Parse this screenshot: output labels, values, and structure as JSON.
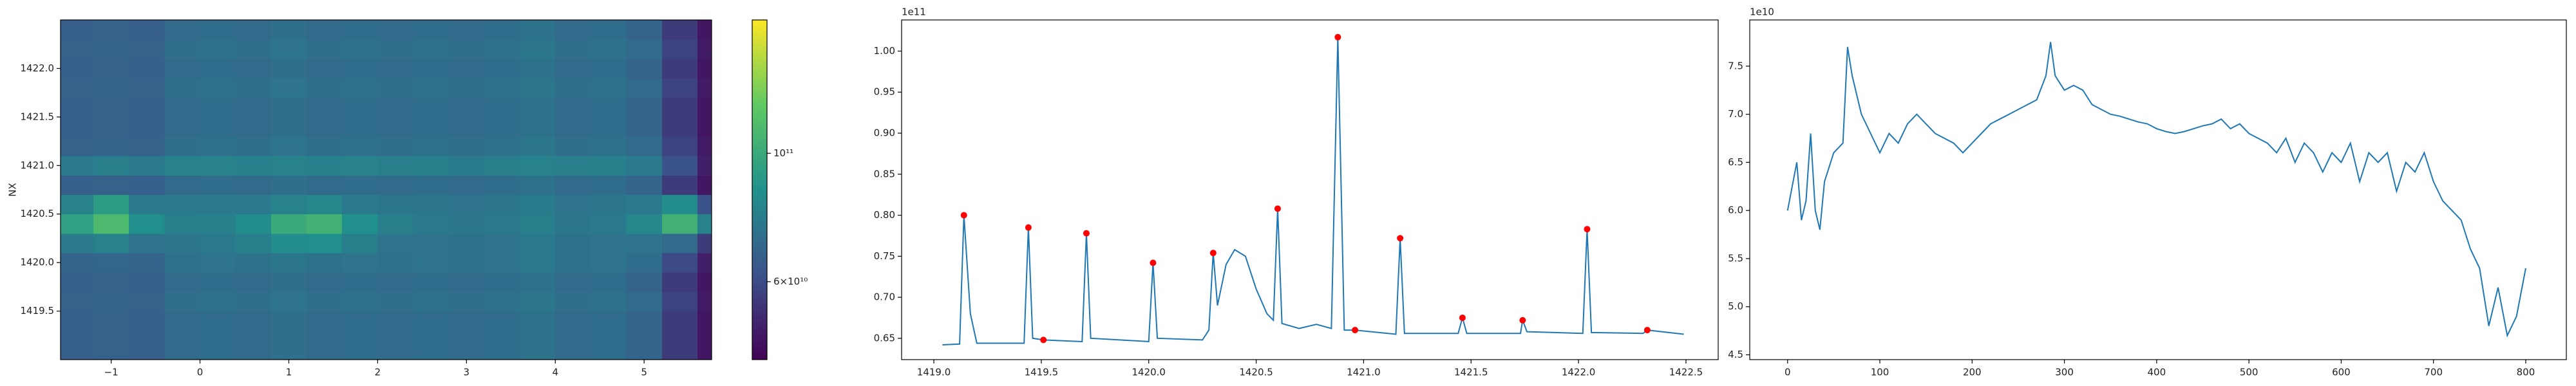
{
  "chart_data": [
    {
      "type": "heatmap",
      "ylabel": "NX",
      "colormap": "viridis",
      "color_scale": "log",
      "xlim": [
        -1.57,
        5.76
      ],
      "ylim": [
        1419.0,
        1422.5
      ],
      "xticks": [
        {
          "value": -1,
          "label": "−1"
        },
        0,
        1,
        2,
        3,
        4,
        5
      ],
      "yticks": [
        1419.5,
        {
          "value": 1420,
          "label": "1420.0"
        },
        1420.5,
        {
          "value": 1421,
          "label": "1421.0"
        },
        1421.5,
        {
          "value": 1422,
          "label": "1422.0"
        }
      ],
      "clim": [
        44000000000.0,
        170000000000.0
      ],
      "cticks": [
        {
          "value": 60000000000.0,
          "label": "6×10¹⁰"
        },
        {
          "value": 100000000000.0,
          "label": "10¹¹"
        }
      ],
      "x": [
        -1.4,
        -1.0,
        -0.6,
        -0.2,
        0.2,
        0.6,
        1.0,
        1.4,
        1.8,
        2.2,
        2.6,
        3.0,
        3.4,
        3.8,
        4.2,
        4.6,
        5.0,
        5.4,
        5.8
      ],
      "y": [
        1419.2,
        1419.4,
        1419.6,
        1419.8,
        1420.0,
        1420.2,
        1420.4,
        1420.6,
        1420.8,
        1421.0,
        1421.2,
        1421.4,
        1421.6,
        1421.8,
        1422.0,
        1422.2,
        1422.4
      ],
      "z": [
        [
          66000000000.0,
          67000000000.0,
          66000000000.0,
          70000000000.0,
          71000000000.0,
          70000000000.0,
          72000000000.0,
          70000000000.0,
          71000000000.0,
          70000000000.0,
          71000000000.0,
          70000000000.0,
          71000000000.0,
          73000000000.0,
          70000000000.0,
          71000000000.0,
          68000000000.0,
          56000000000.0,
          48000000000.0
        ],
        [
          66000000000.0,
          67000000000.0,
          66000000000.0,
          70000000000.0,
          71000000000.0,
          70000000000.0,
          72000000000.0,
          70000000000.0,
          71000000000.0,
          70000000000.0,
          71000000000.0,
          70000000000.0,
          71000000000.0,
          73000000000.0,
          70000000000.0,
          71000000000.0,
          68000000000.0,
          56000000000.0,
          48000000000.0
        ],
        [
          67000000000.0,
          68000000000.0,
          67000000000.0,
          72000000000.0,
          73000000000.0,
          72000000000.0,
          74000000000.0,
          72000000000.0,
          73000000000.0,
          72000000000.0,
          73000000000.0,
          72000000000.0,
          73000000000.0,
          75000000000.0,
          72000000000.0,
          73000000000.0,
          70000000000.0,
          58000000000.0,
          49000000000.0
        ],
        [
          66000000000.0,
          67000000000.0,
          66000000000.0,
          70000000000.0,
          71000000000.0,
          70000000000.0,
          72000000000.0,
          70000000000.0,
          71000000000.0,
          70000000000.0,
          71000000000.0,
          70000000000.0,
          71000000000.0,
          73000000000.0,
          70000000000.0,
          71000000000.0,
          68000000000.0,
          56000000000.0,
          48000000000.0
        ],
        [
          68000000000.0,
          69000000000.0,
          68000000000.0,
          73000000000.0,
          74000000000.0,
          73000000000.0,
          75000000000.0,
          73000000000.0,
          74000000000.0,
          73000000000.0,
          74000000000.0,
          73000000000.0,
          74000000000.0,
          76000000000.0,
          73000000000.0,
          74000000000.0,
          71000000000.0,
          60000000000.0,
          50000000000.0
        ],
        [
          76000000000.0,
          80000000000.0,
          74000000000.0,
          75000000000.0,
          76000000000.0,
          78000000000.0,
          84000000000.0,
          86000000000.0,
          78000000000.0,
          74000000000.0,
          74000000000.0,
          73000000000.0,
          74000000000.0,
          76000000000.0,
          73000000000.0,
          74000000000.0,
          74000000000.0,
          70000000000.0,
          56000000000.0
        ],
        [
          94000000000.0,
          110000000000.0,
          86000000000.0,
          78000000000.0,
          79000000000.0,
          84000000000.0,
          100000000000.0,
          105000000000.0,
          86000000000.0,
          78000000000.0,
          76000000000.0,
          75000000000.0,
          76000000000.0,
          78000000000.0,
          75000000000.0,
          76000000000.0,
          82000000000.0,
          104000000000.0,
          80000000000.0
        ],
        [
          80000000000.0,
          92000000000.0,
          76000000000.0,
          76000000000.0,
          76000000000.0,
          76000000000.0,
          80000000000.0,
          82000000000.0,
          76000000000.0,
          75000000000.0,
          75000000000.0,
          74000000000.0,
          75000000000.0,
          77000000000.0,
          74000000000.0,
          75000000000.0,
          76000000000.0,
          84000000000.0,
          62000000000.0
        ],
        [
          66000000000.0,
          67000000000.0,
          66000000000.0,
          70000000000.0,
          71000000000.0,
          70000000000.0,
          72000000000.0,
          70000000000.0,
          71000000000.0,
          70000000000.0,
          71000000000.0,
          70000000000.0,
          71000000000.0,
          73000000000.0,
          70000000000.0,
          71000000000.0,
          68000000000.0,
          56000000000.0,
          48000000000.0
        ],
        [
          76000000000.0,
          78000000000.0,
          76000000000.0,
          80000000000.0,
          80000000000.0,
          79000000000.0,
          80000000000.0,
          79000000000.0,
          80000000000.0,
          78000000000.0,
          79000000000.0,
          77000000000.0,
          78000000000.0,
          80000000000.0,
          78000000000.0,
          79000000000.0,
          76000000000.0,
          62000000000.0,
          50000000000.0
        ],
        [
          67000000000.0,
          68000000000.0,
          67000000000.0,
          72000000000.0,
          73000000000.0,
          72000000000.0,
          74000000000.0,
          72000000000.0,
          73000000000.0,
          72000000000.0,
          73000000000.0,
          72000000000.0,
          73000000000.0,
          75000000000.0,
          72000000000.0,
          73000000000.0,
          70000000000.0,
          58000000000.0,
          49000000000.0
        ],
        [
          66000000000.0,
          67000000000.0,
          66000000000.0,
          70000000000.0,
          71000000000.0,
          70000000000.0,
          72000000000.0,
          70000000000.0,
          71000000000.0,
          70000000000.0,
          71000000000.0,
          70000000000.0,
          71000000000.0,
          73000000000.0,
          70000000000.0,
          71000000000.0,
          68000000000.0,
          56000000000.0,
          48000000000.0
        ],
        [
          66000000000.0,
          67000000000.0,
          66000000000.0,
          70000000000.0,
          71000000000.0,
          70000000000.0,
          72000000000.0,
          70000000000.0,
          71000000000.0,
          70000000000.0,
          71000000000.0,
          70000000000.0,
          71000000000.0,
          73000000000.0,
          70000000000.0,
          71000000000.0,
          68000000000.0,
          56000000000.0,
          48000000000.0
        ],
        [
          67000000000.0,
          68000000000.0,
          67000000000.0,
          72000000000.0,
          73000000000.0,
          72000000000.0,
          74000000000.0,
          72000000000.0,
          73000000000.0,
          72000000000.0,
          73000000000.0,
          72000000000.0,
          73000000000.0,
          75000000000.0,
          72000000000.0,
          73000000000.0,
          70000000000.0,
          58000000000.0,
          49000000000.0
        ],
        [
          66000000000.0,
          67000000000.0,
          66000000000.0,
          70000000000.0,
          71000000000.0,
          70000000000.0,
          72000000000.0,
          70000000000.0,
          71000000000.0,
          70000000000.0,
          71000000000.0,
          70000000000.0,
          71000000000.0,
          73000000000.0,
          70000000000.0,
          71000000000.0,
          68000000000.0,
          56000000000.0,
          48000000000.0
        ],
        [
          67000000000.0,
          68000000000.0,
          67000000000.0,
          72000000000.0,
          73000000000.0,
          72000000000.0,
          74000000000.0,
          72000000000.0,
          73000000000.0,
          72000000000.0,
          73000000000.0,
          72000000000.0,
          73000000000.0,
          75000000000.0,
          72000000000.0,
          73000000000.0,
          70000000000.0,
          58000000000.0,
          49000000000.0
        ],
        [
          66000000000.0,
          67000000000.0,
          66000000000.0,
          70000000000.0,
          71000000000.0,
          70000000000.0,
          72000000000.0,
          70000000000.0,
          71000000000.0,
          70000000000.0,
          71000000000.0,
          70000000000.0,
          71000000000.0,
          73000000000.0,
          70000000000.0,
          71000000000.0,
          68000000000.0,
          56000000000.0,
          48000000000.0
        ]
      ]
    },
    {
      "type": "line",
      "y_offset_label": "1e11",
      "xlim": [
        1418.85,
        1422.65
      ],
      "ylim": [
        0.624,
        1.038
      ],
      "xticks": [
        {
          "value": 1419,
          "label": "1419.0"
        },
        1419.5,
        {
          "value": 1420,
          "label": "1420.0"
        },
        1420.5,
        {
          "value": 1421,
          "label": "1421.0"
        },
        1421.5,
        {
          "value": 1422,
          "label": "1422.0"
        },
        1422.5
      ],
      "yticks": [
        0.65,
        {
          "value": 0.7,
          "label": "0.70"
        },
        0.75,
        {
          "value": 0.8,
          "label": "0.80"
        },
        0.85,
        {
          "value": 0.9,
          "label": "0.90"
        },
        0.95,
        {
          "value": 1,
          "label": "1.00"
        }
      ],
      "series": [
        {
          "style": "line",
          "color": "#1f77b4",
          "x": [
            1419.04,
            1419.12,
            1419.14,
            1419.17,
            1419.2,
            1419.42,
            1419.44,
            1419.46,
            1419.51,
            1419.69,
            1419.71,
            1419.73,
            1420.0,
            1420.02,
            1420.04,
            1420.25,
            1420.28,
            1420.3,
            1420.32,
            1420.36,
            1420.4,
            1420.45,
            1420.5,
            1420.55,
            1420.58,
            1420.6,
            1420.62,
            1420.7,
            1420.78,
            1420.85,
            1420.88,
            1420.91,
            1420.96,
            1421.15,
            1421.17,
            1421.19,
            1421.44,
            1421.46,
            1421.48,
            1421.73,
            1421.74,
            1421.76,
            1422.02,
            1422.04,
            1422.06,
            1422.3,
            1422.32,
            1422.49
          ],
          "values": [
            0.642,
            0.643,
            0.8,
            0.68,
            0.644,
            0.644,
            0.785,
            0.65,
            0.648,
            0.646,
            0.778,
            0.65,
            0.646,
            0.742,
            0.65,
            0.648,
            0.66,
            0.754,
            0.69,
            0.74,
            0.758,
            0.75,
            0.71,
            0.68,
            0.672,
            0.808,
            0.668,
            0.662,
            0.667,
            0.662,
            1.017,
            0.66,
            0.66,
            0.655,
            0.772,
            0.656,
            0.656,
            0.675,
            0.656,
            0.656,
            0.672,
            0.658,
            0.656,
            0.783,
            0.657,
            0.656,
            0.66,
            0.655
          ]
        },
        {
          "style": "markers",
          "color": "#ff0000",
          "x": [
            1419.14,
            1419.44,
            1419.51,
            1419.71,
            1420.02,
            1420.3,
            1420.6,
            1420.88,
            1420.96,
            1421.17,
            1421.46,
            1421.74,
            1422.04,
            1422.32
          ],
          "values": [
            0.8,
            0.785,
            0.648,
            0.778,
            0.742,
            0.754,
            0.808,
            1.017,
            0.66,
            0.772,
            0.675,
            0.672,
            0.783,
            0.66
          ]
        }
      ]
    },
    {
      "type": "line",
      "y_offset_label": "1e10",
      "xlim": [
        -41,
        844
      ],
      "ylim": [
        4.45,
        7.98
      ],
      "xticks": [
        0,
        100,
        200,
        300,
        400,
        500,
        600,
        700,
        800
      ],
      "yticks": [
        4.5,
        {
          "value": 5,
          "label": "5.0"
        },
        5.5,
        {
          "value": 6,
          "label": "6.0"
        },
        6.5,
        {
          "value": 7,
          "label": "7.0"
        },
        7.5
      ],
      "series": [
        {
          "style": "line",
          "color": "#1f77b4",
          "x": [
            0,
            10,
            15,
            20,
            25,
            30,
            35,
            40,
            50,
            60,
            65,
            70,
            80,
            90,
            100,
            110,
            120,
            130,
            140,
            150,
            160,
            170,
            180,
            190,
            200,
            210,
            220,
            230,
            240,
            250,
            260,
            270,
            280,
            285,
            290,
            300,
            310,
            320,
            330,
            340,
            350,
            360,
            370,
            380,
            390,
            400,
            410,
            420,
            430,
            440,
            450,
            460,
            470,
            480,
            490,
            500,
            510,
            520,
            530,
            540,
            550,
            560,
            570,
            580,
            590,
            600,
            610,
            620,
            630,
            640,
            650,
            660,
            670,
            680,
            690,
            700,
            710,
            720,
            730,
            740,
            750,
            760,
            770,
            780,
            790,
            800
          ],
          "values": [
            6.0,
            6.5,
            5.9,
            6.1,
            6.8,
            6.0,
            5.8,
            6.3,
            6.6,
            6.7,
            7.7,
            7.4,
            7.0,
            6.8,
            6.6,
            6.8,
            6.7,
            6.9,
            7.0,
            6.9,
            6.8,
            6.75,
            6.7,
            6.6,
            6.7,
            6.8,
            6.9,
            6.95,
            7.0,
            7.05,
            7.1,
            7.15,
            7.4,
            7.75,
            7.4,
            7.25,
            7.3,
            7.25,
            7.1,
            7.05,
            7.0,
            6.98,
            6.95,
            6.92,
            6.9,
            6.85,
            6.82,
            6.8,
            6.82,
            6.85,
            6.88,
            6.9,
            6.95,
            6.85,
            6.9,
            6.8,
            6.75,
            6.7,
            6.6,
            6.75,
            6.5,
            6.7,
            6.6,
            6.4,
            6.6,
            6.5,
            6.7,
            6.3,
            6.6,
            6.5,
            6.6,
            6.2,
            6.5,
            6.4,
            6.6,
            6.3,
            6.1,
            6.0,
            5.9,
            5.6,
            5.4,
            4.8,
            5.2,
            4.7,
            4.9,
            5.4
          ]
        }
      ]
    }
  ]
}
